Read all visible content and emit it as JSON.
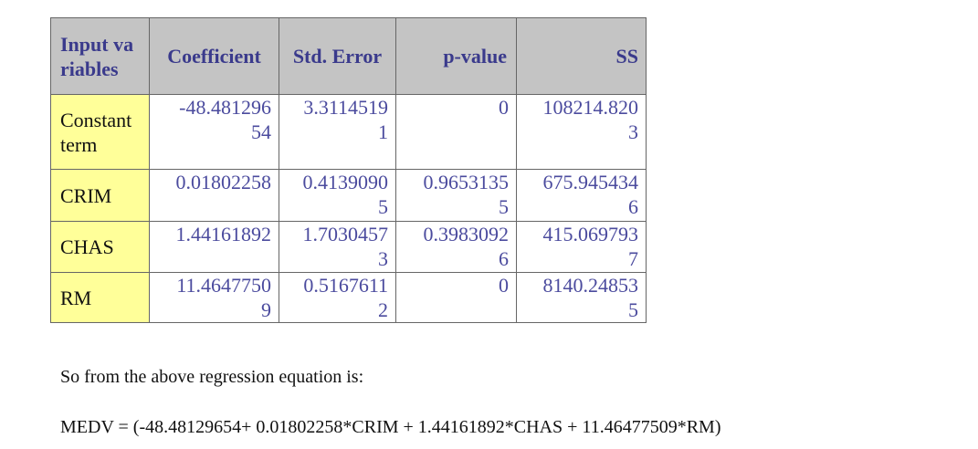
{
  "table": {
    "header": [
      "Input variables",
      "Coefficient",
      "Std. Error",
      "p-value",
      "SS"
    ],
    "rows": [
      [
        "Constant term",
        "-48.48129654",
        "3.31145191",
        "0",
        "108214.8203"
      ],
      [
        "CRIM",
        "0.01802258",
        "0.41390905",
        "0.96531355",
        "675.9454346"
      ],
      [
        "CHAS",
        "1.44161892",
        "1.70304573",
        "0.39830926",
        "415.0697937"
      ],
      [
        "RM",
        "11.46477509",
        "0.51676112",
        "0",
        "8140.248535"
      ]
    ]
  },
  "paragraphs": [
    "So from the above regression equation is:",
    "MEDV = (-48.48129654+ 0.01802258*CRIM + 1.44161892*CHAS + 11.46477509*RM)"
  ]
}
